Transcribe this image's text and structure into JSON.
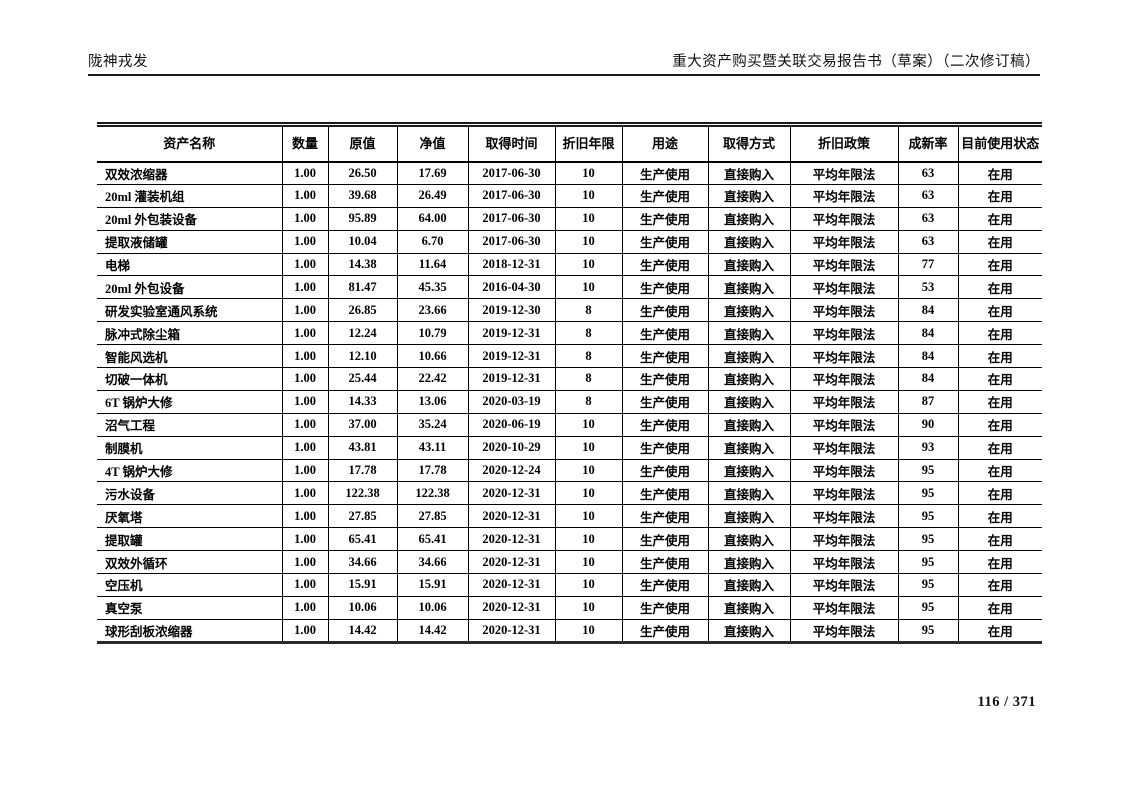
{
  "header": {
    "left": "陇神戎发",
    "right": "重大资产购买暨关联交易报告书（草案）（二次修订稿）"
  },
  "footer": {
    "page_number": "116 / 371"
  },
  "table": {
    "columns": [
      "资产名称",
      "数量",
      "原值",
      "净值",
      "取得时间",
      "折旧年限",
      "用途",
      "取得方式",
      "折旧政策",
      "成新率",
      "目前使用状态"
    ],
    "rows": [
      [
        "双效浓缩器",
        "1.00",
        "26.50",
        "17.69",
        "2017-06-30",
        "10",
        "生产使用",
        "直接购入",
        "平均年限法",
        "63",
        "在用"
      ],
      [
        "20ml 灌装机组",
        "1.00",
        "39.68",
        "26.49",
        "2017-06-30",
        "10",
        "生产使用",
        "直接购入",
        "平均年限法",
        "63",
        "在用"
      ],
      [
        "20ml 外包装设备",
        "1.00",
        "95.89",
        "64.00",
        "2017-06-30",
        "10",
        "生产使用",
        "直接购入",
        "平均年限法",
        "63",
        "在用"
      ],
      [
        "提取液储罐",
        "1.00",
        "10.04",
        "6.70",
        "2017-06-30",
        "10",
        "生产使用",
        "直接购入",
        "平均年限法",
        "63",
        "在用"
      ],
      [
        "电梯",
        "1.00",
        "14.38",
        "11.64",
        "2018-12-31",
        "10",
        "生产使用",
        "直接购入",
        "平均年限法",
        "77",
        "在用"
      ],
      [
        "20ml 外包设备",
        "1.00",
        "81.47",
        "45.35",
        "2016-04-30",
        "10",
        "生产使用",
        "直接购入",
        "平均年限法",
        "53",
        "在用"
      ],
      [
        "研发实验室通风系统",
        "1.00",
        "26.85",
        "23.66",
        "2019-12-30",
        "8",
        "生产使用",
        "直接购入",
        "平均年限法",
        "84",
        "在用"
      ],
      [
        "脉冲式除尘箱",
        "1.00",
        "12.24",
        "10.79",
        "2019-12-31",
        "8",
        "生产使用",
        "直接购入",
        "平均年限法",
        "84",
        "在用"
      ],
      [
        "智能风选机",
        "1.00",
        "12.10",
        "10.66",
        "2019-12-31",
        "8",
        "生产使用",
        "直接购入",
        "平均年限法",
        "84",
        "在用"
      ],
      [
        "切破一体机",
        "1.00",
        "25.44",
        "22.42",
        "2019-12-31",
        "8",
        "生产使用",
        "直接购入",
        "平均年限法",
        "84",
        "在用"
      ],
      [
        "6T 锅炉大修",
        "1.00",
        "14.33",
        "13.06",
        "2020-03-19",
        "8",
        "生产使用",
        "直接购入",
        "平均年限法",
        "87",
        "在用"
      ],
      [
        "沼气工程",
        "1.00",
        "37.00",
        "35.24",
        "2020-06-19",
        "10",
        "生产使用",
        "直接购入",
        "平均年限法",
        "90",
        "在用"
      ],
      [
        "制膜机",
        "1.00",
        "43.81",
        "43.11",
        "2020-10-29",
        "10",
        "生产使用",
        "直接购入",
        "平均年限法",
        "93",
        "在用"
      ],
      [
        "4T 锅炉大修",
        "1.00",
        "17.78",
        "17.78",
        "2020-12-24",
        "10",
        "生产使用",
        "直接购入",
        "平均年限法",
        "95",
        "在用"
      ],
      [
        "污水设备",
        "1.00",
        "122.38",
        "122.38",
        "2020-12-31",
        "10",
        "生产使用",
        "直接购入",
        "平均年限法",
        "95",
        "在用"
      ],
      [
        "厌氧塔",
        "1.00",
        "27.85",
        "27.85",
        "2020-12-31",
        "10",
        "生产使用",
        "直接购入",
        "平均年限法",
        "95",
        "在用"
      ],
      [
        "提取罐",
        "1.00",
        "65.41",
        "65.41",
        "2020-12-31",
        "10",
        "生产使用",
        "直接购入",
        "平均年限法",
        "95",
        "在用"
      ],
      [
        "双效外循环",
        "1.00",
        "34.66",
        "34.66",
        "2020-12-31",
        "10",
        "生产使用",
        "直接购入",
        "平均年限法",
        "95",
        "在用"
      ],
      [
        "空压机",
        "1.00",
        "15.91",
        "15.91",
        "2020-12-31",
        "10",
        "生产使用",
        "直接购入",
        "平均年限法",
        "95",
        "在用"
      ],
      [
        "真空泵",
        "1.00",
        "10.06",
        "10.06",
        "2020-12-31",
        "10",
        "生产使用",
        "直接购入",
        "平均年限法",
        "95",
        "在用"
      ],
      [
        "球形刮板浓缩器",
        "1.00",
        "14.42",
        "14.42",
        "2020-12-31",
        "10",
        "生产使用",
        "直接购入",
        "平均年限法",
        "95",
        "在用"
      ]
    ]
  }
}
